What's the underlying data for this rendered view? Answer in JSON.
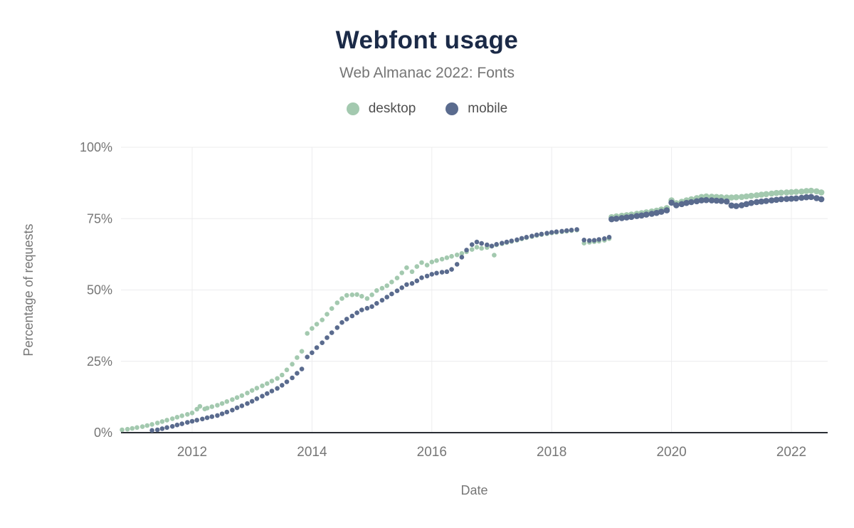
{
  "chart_data": {
    "type": "scatter",
    "title": "Webfont usage",
    "subtitle": "Web Almanac 2022: Fonts",
    "xlabel": "Date",
    "ylabel": "Percentage of requests",
    "xlim": [
      2010.8,
      2022.62
    ],
    "ylim": [
      0,
      100
    ],
    "grid": true,
    "legend_position": "top",
    "x_ticks": [
      2012,
      2014,
      2016,
      2018,
      2020,
      2022
    ],
    "y_ticks": [
      0,
      25,
      50,
      75,
      100
    ],
    "y_tick_labels": [
      "0%",
      "25%",
      "50%",
      "75%",
      "100%"
    ],
    "colors": {
      "desktop": "#a3c9af",
      "mobile": "#5a6b8e",
      "title": "#1b2a47",
      "text": "#767676",
      "grid": "#ececee",
      "axis": "#2a2e35",
      "background": "#ffffff"
    },
    "series": [
      {
        "name": "desktop",
        "color": "#a3c9af",
        "points": [
          [
            2010.83,
            1.0
          ],
          [
            2010.92,
            1.2
          ],
          [
            2011.0,
            1.5
          ],
          [
            2011.08,
            1.8
          ],
          [
            2011.17,
            2.1
          ],
          [
            2011.25,
            2.5
          ],
          [
            2011.33,
            2.9
          ],
          [
            2011.42,
            3.4
          ],
          [
            2011.5,
            3.9
          ],
          [
            2011.58,
            4.4
          ],
          [
            2011.67,
            4.9
          ],
          [
            2011.75,
            5.4
          ],
          [
            2011.83,
            5.9
          ],
          [
            2011.92,
            6.4
          ],
          [
            2012.0,
            6.9
          ],
          [
            2012.08,
            8.2
          ],
          [
            2012.13,
            9.2
          ],
          [
            2012.21,
            8.3
          ],
          [
            2012.25,
            8.6
          ],
          [
            2012.33,
            9.1
          ],
          [
            2012.42,
            9.6
          ],
          [
            2012.5,
            10.2
          ],
          [
            2012.58,
            10.9
          ],
          [
            2012.67,
            11.6
          ],
          [
            2012.75,
            12.3
          ],
          [
            2012.83,
            13.0
          ],
          [
            2012.92,
            13.9
          ],
          [
            2013.0,
            14.8
          ],
          [
            2013.08,
            15.6
          ],
          [
            2013.17,
            16.4
          ],
          [
            2013.25,
            17.2
          ],
          [
            2013.33,
            18.1
          ],
          [
            2013.42,
            19.0
          ],
          [
            2013.5,
            20.2
          ],
          [
            2013.58,
            22.0
          ],
          [
            2013.67,
            24.0
          ],
          [
            2013.75,
            26.3
          ],
          [
            2013.83,
            28.5
          ],
          [
            2013.92,
            34.8
          ],
          [
            2014.0,
            36.5
          ],
          [
            2014.08,
            38.0
          ],
          [
            2014.17,
            39.5
          ],
          [
            2014.25,
            41.5
          ],
          [
            2014.33,
            43.5
          ],
          [
            2014.42,
            45.5
          ],
          [
            2014.5,
            47.0
          ],
          [
            2014.58,
            48.1
          ],
          [
            2014.67,
            48.3
          ],
          [
            2014.75,
            48.4
          ],
          [
            2014.83,
            47.8
          ],
          [
            2014.92,
            47.0
          ],
          [
            2015.0,
            48.3
          ],
          [
            2015.08,
            49.8
          ],
          [
            2015.17,
            50.6
          ],
          [
            2015.25,
            51.5
          ],
          [
            2015.33,
            52.8
          ],
          [
            2015.42,
            54.2
          ],
          [
            2015.5,
            56.0
          ],
          [
            2015.58,
            57.8
          ],
          [
            2015.67,
            56.4
          ],
          [
            2015.75,
            58.2
          ],
          [
            2015.83,
            59.6
          ],
          [
            2015.92,
            58.7
          ],
          [
            2016.0,
            59.8
          ],
          [
            2016.08,
            60.3
          ],
          [
            2016.17,
            60.8
          ],
          [
            2016.25,
            61.3
          ],
          [
            2016.33,
            61.8
          ],
          [
            2016.42,
            62.3
          ],
          [
            2016.5,
            62.8
          ],
          [
            2016.58,
            63.4
          ],
          [
            2016.67,
            64.2
          ],
          [
            2016.75,
            65.0
          ],
          [
            2016.83,
            64.6
          ],
          [
            2016.92,
            64.9
          ],
          [
            2017.0,
            65.3
          ],
          [
            2017.04,
            62.2
          ],
          [
            2017.08,
            65.8
          ],
          [
            2017.17,
            66.2
          ],
          [
            2017.25,
            66.6
          ],
          [
            2017.33,
            67.0
          ],
          [
            2017.42,
            67.4
          ],
          [
            2017.5,
            67.9
          ],
          [
            2017.58,
            68.3
          ],
          [
            2017.67,
            68.7
          ],
          [
            2017.75,
            69.1
          ],
          [
            2017.83,
            69.4
          ],
          [
            2017.92,
            69.7
          ],
          [
            2018.0,
            70.0
          ],
          [
            2018.08,
            70.2
          ],
          [
            2018.17,
            70.4
          ],
          [
            2018.25,
            70.6
          ],
          [
            2018.33,
            70.8
          ],
          [
            2018.42,
            71.0
          ],
          [
            2018.54,
            66.4
          ],
          [
            2018.63,
            66.7
          ],
          [
            2018.71,
            66.9
          ],
          [
            2018.79,
            67.1
          ],
          [
            2018.88,
            67.4
          ],
          [
            2018.96,
            68.0
          ],
          [
            2019.0,
            75.5
          ],
          [
            2019.08,
            75.8
          ],
          [
            2019.17,
            76.0
          ],
          [
            2019.25,
            76.2
          ],
          [
            2019.33,
            76.4
          ],
          [
            2019.42,
            76.7
          ],
          [
            2019.5,
            76.9
          ],
          [
            2019.58,
            77.2
          ],
          [
            2019.67,
            77.5
          ],
          [
            2019.75,
            77.8
          ],
          [
            2019.83,
            78.2
          ],
          [
            2019.92,
            78.7
          ],
          [
            2020.0,
            81.4
          ],
          [
            2020.08,
            80.4
          ],
          [
            2020.17,
            80.9
          ],
          [
            2020.25,
            81.4
          ],
          [
            2020.33,
            81.8
          ],
          [
            2020.42,
            82.2
          ],
          [
            2020.5,
            82.6
          ],
          [
            2020.58,
            82.8
          ],
          [
            2020.67,
            82.7
          ],
          [
            2020.75,
            82.6
          ],
          [
            2020.83,
            82.5
          ],
          [
            2020.92,
            82.4
          ],
          [
            2021.0,
            82.4
          ],
          [
            2021.08,
            82.5
          ],
          [
            2021.17,
            82.6
          ],
          [
            2021.25,
            82.8
          ],
          [
            2021.33,
            83.0
          ],
          [
            2021.42,
            83.2
          ],
          [
            2021.5,
            83.4
          ],
          [
            2021.58,
            83.6
          ],
          [
            2021.67,
            83.8
          ],
          [
            2021.75,
            84.0
          ],
          [
            2021.83,
            84.1
          ],
          [
            2021.92,
            84.2
          ],
          [
            2022.0,
            84.3
          ],
          [
            2022.08,
            84.4
          ],
          [
            2022.17,
            84.5
          ],
          [
            2022.25,
            84.7
          ],
          [
            2022.33,
            84.8
          ],
          [
            2022.42,
            84.6
          ],
          [
            2022.5,
            84.2
          ]
        ]
      },
      {
        "name": "mobile",
        "color": "#5a6b8e",
        "points": [
          [
            2011.33,
            0.8
          ],
          [
            2011.42,
            1.0
          ],
          [
            2011.5,
            1.4
          ],
          [
            2011.58,
            1.8
          ],
          [
            2011.67,
            2.2
          ],
          [
            2011.75,
            2.7
          ],
          [
            2011.83,
            3.1
          ],
          [
            2011.92,
            3.6
          ],
          [
            2012.0,
            4.0
          ],
          [
            2012.08,
            4.4
          ],
          [
            2012.17,
            4.8
          ],
          [
            2012.25,
            5.2
          ],
          [
            2012.33,
            5.6
          ],
          [
            2012.42,
            6.0
          ],
          [
            2012.5,
            6.6
          ],
          [
            2012.58,
            7.2
          ],
          [
            2012.67,
            7.9
          ],
          [
            2012.75,
            8.7
          ],
          [
            2012.83,
            9.4
          ],
          [
            2012.92,
            10.2
          ],
          [
            2013.0,
            11.0
          ],
          [
            2013.08,
            11.9
          ],
          [
            2013.17,
            12.8
          ],
          [
            2013.25,
            13.7
          ],
          [
            2013.33,
            14.6
          ],
          [
            2013.42,
            15.5
          ],
          [
            2013.5,
            16.6
          ],
          [
            2013.58,
            17.8
          ],
          [
            2013.67,
            19.2
          ],
          [
            2013.75,
            20.8
          ],
          [
            2013.83,
            22.3
          ],
          [
            2013.92,
            26.5
          ],
          [
            2014.0,
            28.0
          ],
          [
            2014.08,
            29.8
          ],
          [
            2014.17,
            31.5
          ],
          [
            2014.25,
            33.3
          ],
          [
            2014.33,
            35.0
          ],
          [
            2014.42,
            36.8
          ],
          [
            2014.5,
            38.6
          ],
          [
            2014.58,
            39.8
          ],
          [
            2014.67,
            40.9
          ],
          [
            2014.75,
            42.0
          ],
          [
            2014.83,
            43.0
          ],
          [
            2014.92,
            43.6
          ],
          [
            2015.0,
            44.2
          ],
          [
            2015.08,
            45.3
          ],
          [
            2015.17,
            46.4
          ],
          [
            2015.25,
            47.5
          ],
          [
            2015.33,
            48.6
          ],
          [
            2015.42,
            49.7
          ],
          [
            2015.5,
            50.8
          ],
          [
            2015.58,
            51.9
          ],
          [
            2015.67,
            52.3
          ],
          [
            2015.75,
            53.2
          ],
          [
            2015.83,
            54.3
          ],
          [
            2015.92,
            54.9
          ],
          [
            2016.0,
            55.5
          ],
          [
            2016.08,
            55.9
          ],
          [
            2016.17,
            56.2
          ],
          [
            2016.25,
            56.4
          ],
          [
            2016.33,
            57.2
          ],
          [
            2016.42,
            59.0
          ],
          [
            2016.5,
            61.5
          ],
          [
            2016.58,
            64.0
          ],
          [
            2016.67,
            65.9
          ],
          [
            2016.75,
            66.8
          ],
          [
            2016.83,
            66.3
          ],
          [
            2016.92,
            65.8
          ],
          [
            2017.0,
            65.4
          ],
          [
            2017.08,
            66.0
          ],
          [
            2017.17,
            66.4
          ],
          [
            2017.25,
            66.8
          ],
          [
            2017.33,
            67.2
          ],
          [
            2017.42,
            67.6
          ],
          [
            2017.5,
            68.1
          ],
          [
            2017.58,
            68.5
          ],
          [
            2017.67,
            68.9
          ],
          [
            2017.75,
            69.3
          ],
          [
            2017.83,
            69.6
          ],
          [
            2017.92,
            69.9
          ],
          [
            2018.0,
            70.2
          ],
          [
            2018.08,
            70.4
          ],
          [
            2018.17,
            70.6
          ],
          [
            2018.25,
            70.8
          ],
          [
            2018.33,
            71.0
          ],
          [
            2018.42,
            71.2
          ],
          [
            2018.54,
            67.5
          ],
          [
            2018.63,
            67.3
          ],
          [
            2018.71,
            67.4
          ],
          [
            2018.79,
            67.7
          ],
          [
            2018.88,
            68.0
          ],
          [
            2018.96,
            68.5
          ],
          [
            2019.0,
            74.8
          ],
          [
            2019.08,
            75.0
          ],
          [
            2019.17,
            75.2
          ],
          [
            2019.25,
            75.4
          ],
          [
            2019.33,
            75.6
          ],
          [
            2019.42,
            75.9
          ],
          [
            2019.5,
            76.1
          ],
          [
            2019.58,
            76.4
          ],
          [
            2019.67,
            76.7
          ],
          [
            2019.75,
            77.0
          ],
          [
            2019.83,
            77.4
          ],
          [
            2019.92,
            77.9
          ],
          [
            2020.0,
            80.6
          ],
          [
            2020.08,
            79.7
          ],
          [
            2020.17,
            80.1
          ],
          [
            2020.25,
            80.5
          ],
          [
            2020.33,
            80.8
          ],
          [
            2020.42,
            81.1
          ],
          [
            2020.5,
            81.4
          ],
          [
            2020.58,
            81.5
          ],
          [
            2020.67,
            81.4
          ],
          [
            2020.75,
            81.3
          ],
          [
            2020.83,
            81.2
          ],
          [
            2020.92,
            81.0
          ],
          [
            2021.0,
            79.6
          ],
          [
            2021.08,
            79.4
          ],
          [
            2021.17,
            79.7
          ],
          [
            2021.25,
            80.1
          ],
          [
            2021.33,
            80.5
          ],
          [
            2021.42,
            80.8
          ],
          [
            2021.5,
            81.0
          ],
          [
            2021.58,
            81.2
          ],
          [
            2021.67,
            81.4
          ],
          [
            2021.75,
            81.6
          ],
          [
            2021.83,
            81.8
          ],
          [
            2021.92,
            81.9
          ],
          [
            2022.0,
            82.0
          ],
          [
            2022.08,
            82.1
          ],
          [
            2022.17,
            82.3
          ],
          [
            2022.25,
            82.5
          ],
          [
            2022.33,
            82.6
          ],
          [
            2022.42,
            82.2
          ],
          [
            2022.5,
            81.8
          ]
        ]
      }
    ]
  }
}
